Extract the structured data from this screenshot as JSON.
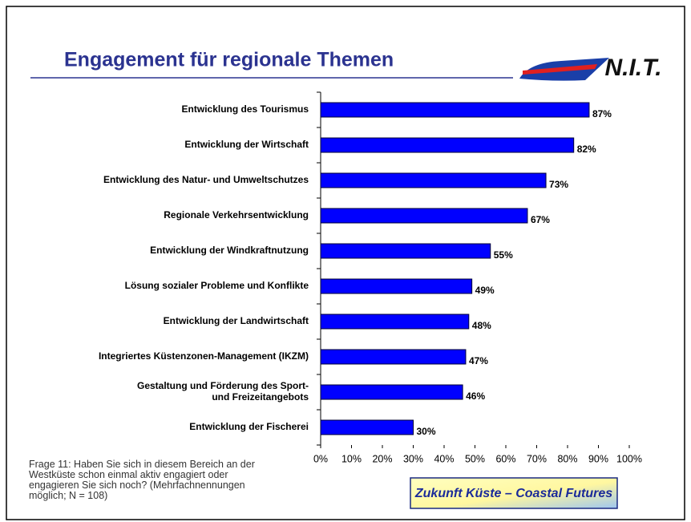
{
  "header": {
    "title": "Engagement für regionale Themen",
    "logo": "N.I.T."
  },
  "chart_data": {
    "type": "bar",
    "orientation": "horizontal",
    "categories": [
      "Entwicklung des Tourismus",
      "Entwicklung der Wirtschaft",
      "Entwicklung des Natur- und Umweltschutzes",
      "Regionale Verkehrsentwicklung",
      "Entwicklung der Windkraftnutzung",
      "Lösung sozialer Probleme und Konflikte",
      "Entwicklung der Landwirtschaft",
      "Integriertes Küstenzonen-Management (IKZM)",
      "Gestaltung und Förderung des Sport-\nund Freizeitangebots",
      "Entwicklung der Fischerei"
    ],
    "values": [
      87,
      82,
      73,
      67,
      55,
      49,
      48,
      47,
      46,
      30
    ],
    "value_labels": [
      "87%",
      "82%",
      "73%",
      "67%",
      "55%",
      "49%",
      "48%",
      "47%",
      "46%",
      "30%"
    ],
    "color": "#0000ff",
    "xlim": [
      0,
      100
    ],
    "xticks": [
      {
        "value": 0,
        "label": "0%"
      },
      {
        "value": 10,
        "label": "10%"
      },
      {
        "value": 20,
        "label": "20%"
      },
      {
        "value": 30,
        "label": "30%"
      },
      {
        "value": 40,
        "label": "40%"
      },
      {
        "value": 50,
        "label": "50%"
      },
      {
        "value": 60,
        "label": "60%"
      },
      {
        "value": 70,
        "label": "70%"
      },
      {
        "value": 80,
        "label": "80%"
      },
      {
        "value": 90,
        "label": "90%"
      },
      {
        "value": 100,
        "label": "100%"
      }
    ]
  },
  "footnote": [
    "Frage 11: Haben Sie sich in diesem Bereich an der",
    "Westküste schon einmal aktiv engagiert oder",
    "engagieren Sie sich noch? (Mehrfachnennungen",
    "möglich; N = 108)"
  ],
  "badge": "Zukunft Küste – Coastal Futures"
}
